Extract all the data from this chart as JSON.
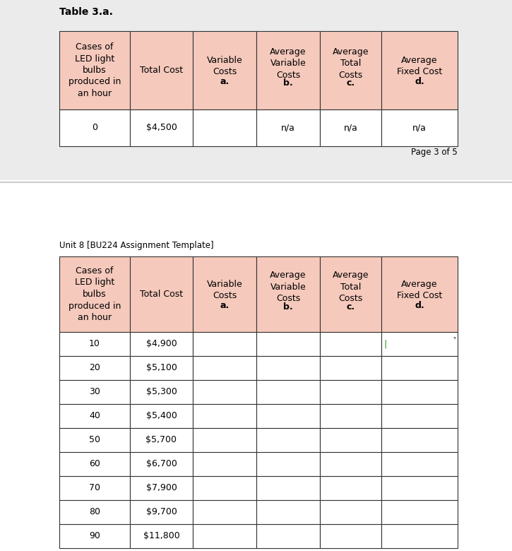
{
  "title1": "Table 3.a.",
  "page_label": "Page 3 of 5",
  "unit_label": "Unit 8 [BU224 Assignment Template]",
  "header_bg": "#f5c9bc",
  "cell_bg": "white",
  "border_color": "#333333",
  "table1_rows": [
    [
      "0",
      "$4,500",
      "",
      "n/a",
      "n/a",
      "n/a"
    ]
  ],
  "table2_rows": [
    [
      "10",
      "$4,900",
      "",
      "",
      "",
      ""
    ],
    [
      "20",
      "$5,100",
      "",
      "",
      "",
      ""
    ],
    [
      "30",
      "$5,300",
      "",
      "",
      "",
      ""
    ],
    [
      "40",
      "$5,400",
      "",
      "",
      "",
      ""
    ],
    [
      "50",
      "$5,700",
      "",
      "",
      "",
      ""
    ],
    [
      "60",
      "$6,700",
      "",
      "",
      "",
      ""
    ],
    [
      "70",
      "$7,900",
      "",
      "",
      "",
      ""
    ],
    [
      "80",
      "$9,700",
      "",
      "",
      "",
      ""
    ],
    [
      "90",
      "$11,800",
      "",
      "",
      "",
      ""
    ]
  ],
  "fig_width": 7.25,
  "fig_height": 7.8,
  "top_bg": "#ebebeb",
  "bottom_bg": "#ffffff",
  "divider_color": "#cccccc",
  "cursor_color": "#228822",
  "dropdown_color": "#888888"
}
